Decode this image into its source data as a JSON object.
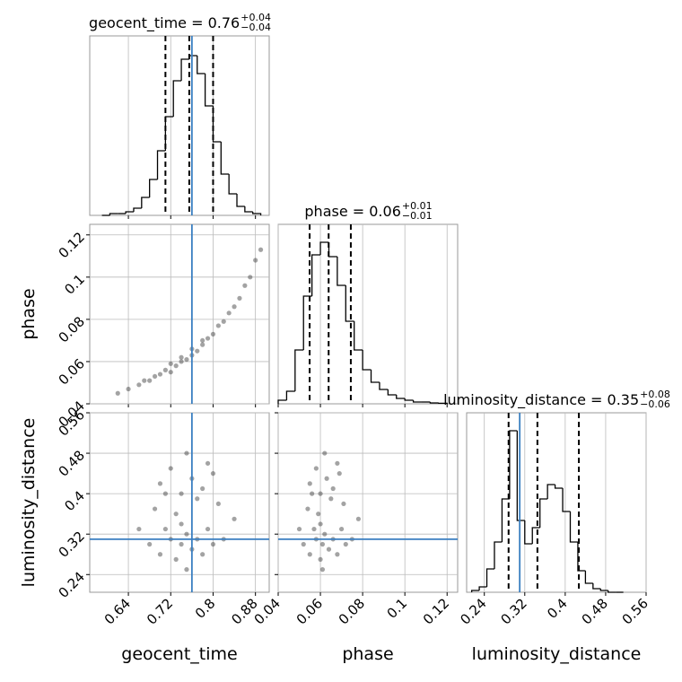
{
  "chart_data": {
    "type": "corner",
    "hist_ylim": [
      0,
      1
    ],
    "parameters": [
      {
        "name": "geocent_time",
        "title": "geocent_time = 0.76",
        "title_plus": "+0.04",
        "title_minus": "−0.04",
        "lim": [
          0.567,
          0.906
        ],
        "ticks": [
          0.64,
          0.72,
          0.8,
          0.88
        ],
        "truth": 0.76,
        "quantiles": [
          0.71,
          0.755,
          0.8
        ],
        "bins": [
          0.59,
          0.605,
          0.62,
          0.635,
          0.65,
          0.665,
          0.68,
          0.695,
          0.71,
          0.725,
          0.74,
          0.755,
          0.77,
          0.785,
          0.8,
          0.815,
          0.83,
          0.845,
          0.86,
          0.875,
          0.89
        ],
        "counts": [
          0,
          0.01,
          0.01,
          0.02,
          0.04,
          0.1,
          0.2,
          0.36,
          0.55,
          0.75,
          0.87,
          0.89,
          0.79,
          0.61,
          0.41,
          0.23,
          0.12,
          0.05,
          0.02,
          0.01
        ]
      },
      {
        "name": "phase",
        "title": "phase = 0.06",
        "title_plus": "+0.01",
        "title_minus": "−0.01",
        "lim": [
          0.04,
          0.125
        ],
        "ticks": [
          0.04,
          0.06,
          0.08,
          0.1,
          0.12
        ],
        "truth": null,
        "quantiles": [
          0.0549,
          0.0639,
          0.0744
        ],
        "bins": [
          0.04,
          0.044,
          0.048,
          0.052,
          0.056,
          0.06,
          0.064,
          0.068,
          0.072,
          0.076,
          0.08,
          0.084,
          0.088,
          0.092,
          0.096,
          0.1,
          0.104,
          0.108,
          0.112,
          0.116,
          0.12
        ],
        "counts": [
          0.02,
          0.07,
          0.3,
          0.6,
          0.83,
          0.9,
          0.82,
          0.66,
          0.46,
          0.3,
          0.19,
          0.12,
          0.08,
          0.05,
          0.03,
          0.02,
          0.01,
          0.01,
          0.005,
          0.003
        ]
      },
      {
        "name": "luminosity_distance",
        "title": "luminosity_distance = 0.35",
        "title_plus": "+0.08",
        "title_minus": "−0.06",
        "lim": [
          0.205,
          0.56
        ],
        "ticks": [
          0.24,
          0.32,
          0.4,
          0.48,
          0.56
        ],
        "truth": 0.31,
        "quantiles": [
          0.288,
          0.345,
          0.427
        ],
        "bins": [
          0.215,
          0.23,
          0.245,
          0.26,
          0.275,
          0.29,
          0.305,
          0.32,
          0.335,
          0.35,
          0.365,
          0.38,
          0.395,
          0.41,
          0.425,
          0.44,
          0.455,
          0.47,
          0.485,
          0.5,
          0.515
        ],
        "counts": [
          0.01,
          0.03,
          0.13,
          0.28,
          0.52,
          0.9,
          0.4,
          0.27,
          0.36,
          0.52,
          0.6,
          0.58,
          0.45,
          0.28,
          0.12,
          0.05,
          0.02,
          0.01,
          0,
          0
        ]
      }
    ],
    "samples": [
      {
        "x": [
          0.62,
          0.64,
          0.66,
          0.67,
          0.68,
          0.69,
          0.7,
          0.71,
          0.72,
          0.72,
          0.73,
          0.74,
          0.74,
          0.75,
          0.76,
          0.76,
          0.77,
          0.78,
          0.78,
          0.79,
          0.8,
          0.81,
          0.82,
          0.83,
          0.84,
          0.85,
          0.86,
          0.87,
          0.88,
          0.89
        ],
        "y": [
          0.045,
          0.047,
          0.049,
          0.051,
          0.051,
          0.053,
          0.054,
          0.056,
          0.055,
          0.059,
          0.058,
          0.06,
          0.062,
          0.061,
          0.063,
          0.066,
          0.065,
          0.068,
          0.07,
          0.071,
          0.073,
          0.077,
          0.079,
          0.083,
          0.086,
          0.09,
          0.096,
          0.1,
          0.108,
          0.113
        ]
      },
      {
        "x": [
          0.68,
          0.7,
          0.71,
          0.72,
          0.73,
          0.74,
          0.75,
          0.76,
          0.77,
          0.78,
          0.79,
          0.8,
          0.82,
          0.7,
          0.72,
          0.74,
          0.76,
          0.78,
          0.8,
          0.69,
          0.73,
          0.75,
          0.77,
          0.79,
          0.81,
          0.66,
          0.84,
          0.75,
          0.74,
          0.71
        ],
        "y": [
          0.3,
          0.28,
          0.33,
          0.31,
          0.27,
          0.3,
          0.32,
          0.29,
          0.31,
          0.28,
          0.33,
          0.3,
          0.31,
          0.42,
          0.45,
          0.4,
          0.43,
          0.41,
          0.44,
          0.37,
          0.36,
          0.48,
          0.39,
          0.46,
          0.38,
          0.33,
          0.35,
          0.25,
          0.34,
          0.4
        ]
      },
      {
        "x": [
          0.052,
          0.055,
          0.057,
          0.058,
          0.06,
          0.061,
          0.062,
          0.064,
          0.066,
          0.068,
          0.07,
          0.072,
          0.075,
          0.055,
          0.058,
          0.06,
          0.063,
          0.066,
          0.069,
          0.054,
          0.059,
          0.062,
          0.065,
          0.068,
          0.071,
          0.05,
          0.078,
          0.061,
          0.06,
          0.056
        ],
        "y": [
          0.3,
          0.28,
          0.33,
          0.31,
          0.27,
          0.3,
          0.32,
          0.29,
          0.31,
          0.28,
          0.33,
          0.3,
          0.31,
          0.42,
          0.45,
          0.4,
          0.43,
          0.41,
          0.44,
          0.37,
          0.36,
          0.48,
          0.39,
          0.46,
          0.38,
          0.33,
          0.35,
          0.25,
          0.34,
          0.4
        ]
      }
    ]
  }
}
